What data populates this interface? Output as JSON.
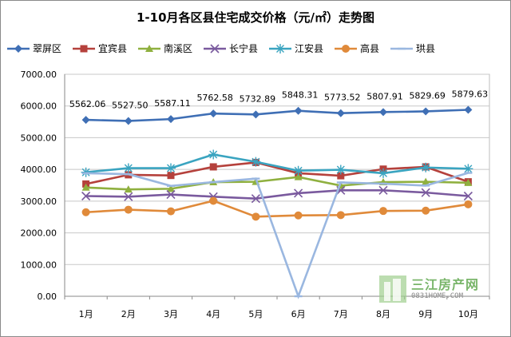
{
  "chart_data": {
    "type": "line",
    "title": "1-10月各区县住宅成交价格（元/㎡）走势图",
    "categories": [
      "1月",
      "2月",
      "3月",
      "4月",
      "5月",
      "6月",
      "7月",
      "8月",
      "9月",
      "10月"
    ],
    "ylim": [
      0,
      7000
    ],
    "yticks": [
      "0.00",
      "1000.00",
      "2000.00",
      "3000.00",
      "4000.00",
      "5000.00",
      "6000.00",
      "7000.00"
    ],
    "grid": true,
    "legend_position": "top",
    "series": [
      {
        "name": "翠屏区",
        "color": "#3f6fb5",
        "marker": "diamond",
        "values": [
          5562.06,
          5527.5,
          5587.11,
          5762.58,
          5732.89,
          5848.31,
          5773.52,
          5807.91,
          5829.69,
          5879.63
        ],
        "labels": [
          "5562.06",
          "5527.50",
          "5587.11",
          "5762.58",
          "5732.89",
          "5848.31",
          "5773.52",
          "5807.91",
          "5829.69",
          "5879.63"
        ]
      },
      {
        "name": "宜宾县",
        "color": "#b5413c",
        "marker": "square",
        "values": [
          3540,
          3830,
          3810,
          4080,
          4220,
          3880,
          3800,
          4010,
          4080,
          3610
        ]
      },
      {
        "name": "南溪区",
        "color": "#8fb03f",
        "marker": "triangle",
        "values": [
          3430,
          3370,
          3390,
          3600,
          3610,
          3760,
          3490,
          3600,
          3610,
          3580
        ]
      },
      {
        "name": "长宁县",
        "color": "#7a5a9e",
        "marker": "x",
        "values": [
          3160,
          3140,
          3210,
          3140,
          3080,
          3250,
          3340,
          3340,
          3270,
          3160
        ]
      },
      {
        "name": "江安县",
        "color": "#3aa4c0",
        "marker": "star",
        "values": [
          3910,
          4040,
          4040,
          4470,
          4240,
          3960,
          3990,
          3880,
          4060,
          4020
        ]
      },
      {
        "name": "高县",
        "color": "#e08a3a",
        "marker": "circle",
        "values": [
          2650,
          2730,
          2680,
          3010,
          2510,
          2550,
          2560,
          2690,
          2700,
          2900
        ]
      },
      {
        "name": "珙县",
        "color": "#9ab7e0",
        "marker": "dash",
        "values": [
          3880,
          3850,
          3480,
          3600,
          3710,
          0,
          3590,
          3550,
          3490,
          3890
        ]
      }
    ]
  },
  "watermark": {
    "brand": "三江房产网",
    "url": "0831HOME.COM"
  }
}
